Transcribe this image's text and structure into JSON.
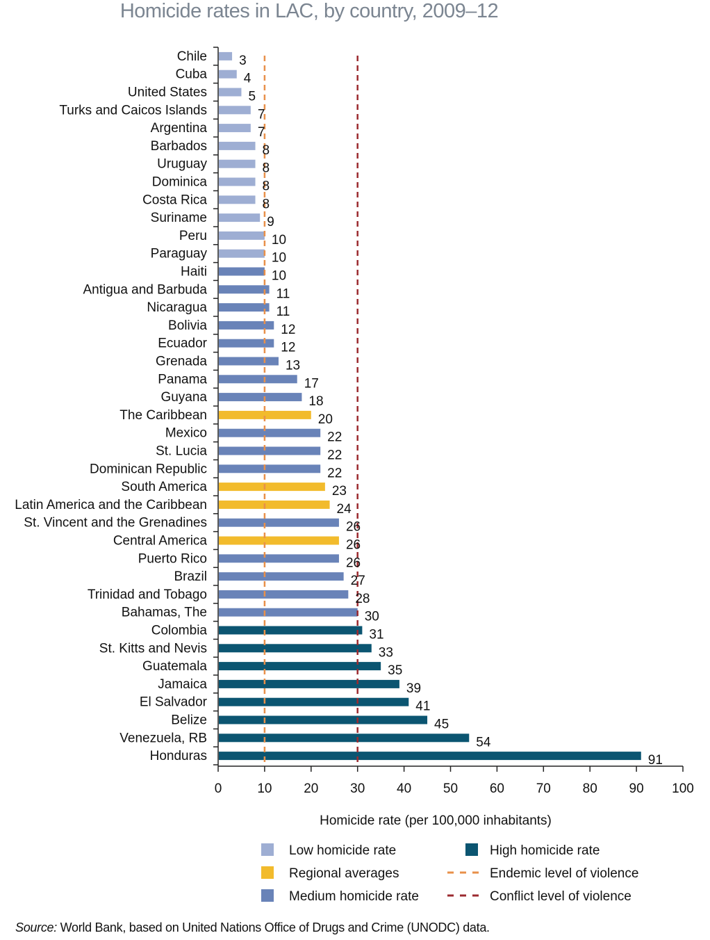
{
  "chart_data": {
    "type": "bar",
    "orientation": "horizontal",
    "title": "Homicide rates in LAC, by country, 2009–12",
    "xlabel": "Homicide rate (per 100,000 inhabitants)",
    "ylabel": "",
    "xlim": [
      0,
      100
    ],
    "xticks": [
      0,
      10,
      20,
      30,
      40,
      50,
      60,
      70,
      80,
      90,
      100
    ],
    "grid": false,
    "legend_placement": "bottom",
    "colors": {
      "low": "#9eaed3",
      "medium": "#6983b8",
      "regional": "#f2bb2c",
      "high": "#0b5571",
      "endemic": "#e8904a",
      "conflict": "#9b2a2f"
    },
    "legend": [
      {
        "key": "low",
        "label": "Low homicide rate",
        "kind": "box"
      },
      {
        "key": "high",
        "label": "High homicide rate",
        "kind": "box"
      },
      {
        "key": "regional",
        "label": "Regional averages",
        "kind": "box"
      },
      {
        "key": "endemic",
        "label": "Endemic level of violence",
        "kind": "dash"
      },
      {
        "key": "medium",
        "label": "Medium homicide rate",
        "kind": "box"
      },
      {
        "key": "conflict",
        "label": "Conflict level of violence",
        "kind": "dash"
      }
    ],
    "reference_lines": [
      {
        "key": "endemic",
        "value": 10,
        "label": "Endemic level of violence"
      },
      {
        "key": "conflict",
        "value": 30,
        "label": "Conflict level of violence"
      }
    ],
    "bars": [
      {
        "category": "Chile",
        "value": 3,
        "group": "low"
      },
      {
        "category": "Cuba",
        "value": 4,
        "group": "low"
      },
      {
        "category": "United States",
        "value": 5,
        "group": "low"
      },
      {
        "category": "Turks and Caicos Islands",
        "value": 7,
        "group": "low"
      },
      {
        "category": "Argentina",
        "value": 7,
        "group": "low"
      },
      {
        "category": "Barbados",
        "value": 8,
        "group": "low"
      },
      {
        "category": "Uruguay",
        "value": 8,
        "group": "low"
      },
      {
        "category": "Dominica",
        "value": 8,
        "group": "low"
      },
      {
        "category": "Costa Rica",
        "value": 8,
        "group": "low"
      },
      {
        "category": "Suriname",
        "value": 9,
        "group": "low"
      },
      {
        "category": "Peru",
        "value": 10,
        "group": "low"
      },
      {
        "category": "Paraguay",
        "value": 10,
        "group": "low"
      },
      {
        "category": "Haiti",
        "value": 10,
        "group": "medium"
      },
      {
        "category": "Antigua and Barbuda",
        "value": 11,
        "group": "medium"
      },
      {
        "category": "Nicaragua",
        "value": 11,
        "group": "medium"
      },
      {
        "category": "Bolivia",
        "value": 12,
        "group": "medium"
      },
      {
        "category": "Ecuador",
        "value": 12,
        "group": "medium"
      },
      {
        "category": "Grenada",
        "value": 13,
        "group": "medium"
      },
      {
        "category": "Panama",
        "value": 17,
        "group": "medium"
      },
      {
        "category": "Guyana",
        "value": 18,
        "group": "medium"
      },
      {
        "category": "The Caribbean",
        "value": 20,
        "group": "regional"
      },
      {
        "category": "Mexico",
        "value": 22,
        "group": "medium"
      },
      {
        "category": "St. Lucia",
        "value": 22,
        "group": "medium"
      },
      {
        "category": "Dominican Republic",
        "value": 22,
        "group": "medium"
      },
      {
        "category": "South America",
        "value": 23,
        "group": "regional"
      },
      {
        "category": "Latin America and the Caribbean",
        "value": 24,
        "group": "regional"
      },
      {
        "category": "St. Vincent and the Grenadines",
        "value": 26,
        "group": "medium"
      },
      {
        "category": "Central America",
        "value": 26,
        "group": "regional"
      },
      {
        "category": "Puerto Rico",
        "value": 26,
        "group": "medium"
      },
      {
        "category": "Brazil",
        "value": 27,
        "group": "medium"
      },
      {
        "category": "Trinidad and Tobago",
        "value": 28,
        "group": "medium"
      },
      {
        "category": "Bahamas, The",
        "value": 30,
        "group": "medium"
      },
      {
        "category": "Colombia",
        "value": 31,
        "group": "high"
      },
      {
        "category": "St. Kitts and Nevis",
        "value": 33,
        "group": "high"
      },
      {
        "category": "Guatemala",
        "value": 35,
        "group": "high"
      },
      {
        "category": "Jamaica",
        "value": 39,
        "group": "high"
      },
      {
        "category": "El Salvador",
        "value": 41,
        "group": "high"
      },
      {
        "category": "Belize",
        "value": 45,
        "group": "high"
      },
      {
        "category": "Venezuela, RB",
        "value": 54,
        "group": "high"
      },
      {
        "category": "Honduras",
        "value": 91,
        "group": "high"
      }
    ]
  },
  "source": {
    "prefix": "Source:",
    "text": " World Bank, based on United Nations Office of Drugs and Crime (UNODC) data."
  }
}
